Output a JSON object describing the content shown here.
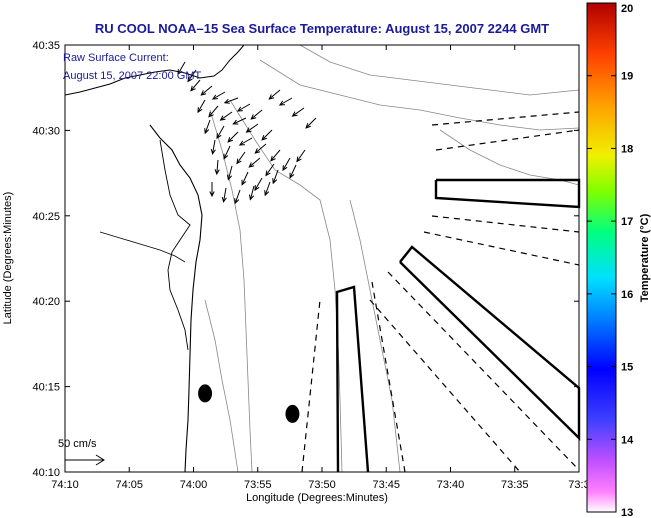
{
  "chart_data": {
    "type": "map",
    "title": "RU COOL  NOAA–15  Sea Surface Temperature:  August 15, 2007 2244 GMT",
    "annotation_lines": [
      "Raw Surface Current:",
      "August 15, 2007 22:00 GMT"
    ],
    "xlabel": "Longitude (Degrees:Minutes)",
    "ylabel": "Latitude (Degrees:Minutes)",
    "x_ticks": [
      "74:10",
      "74:05",
      "74:00",
      "73:55",
      "73:50",
      "73:45",
      "73:40",
      "73:35",
      "73:3"
    ],
    "y_ticks": [
      "40:35",
      "40:30",
      "40:25",
      "40:20",
      "40:15",
      "40:10"
    ],
    "xlim_minutes": [
      -4450,
      -4410
    ],
    "ylim_minutes": [
      2410,
      2435
    ],
    "scale_label": "50 cm/s",
    "colorbar": {
      "label": "Temperature (°C)",
      "min": 13,
      "max": 20,
      "ticks": [
        20,
        19,
        18,
        17,
        16,
        15,
        14,
        13
      ]
    },
    "buoys": [
      {
        "lon_min": -4439.1,
        "lat_min": 2414.6
      },
      {
        "lon_min": -4432.3,
        "lat_min": 2413.4
      }
    ],
    "colors": {
      "title": "#1a1a9a",
      "coast": "#000000",
      "contours": "#888888"
    }
  }
}
